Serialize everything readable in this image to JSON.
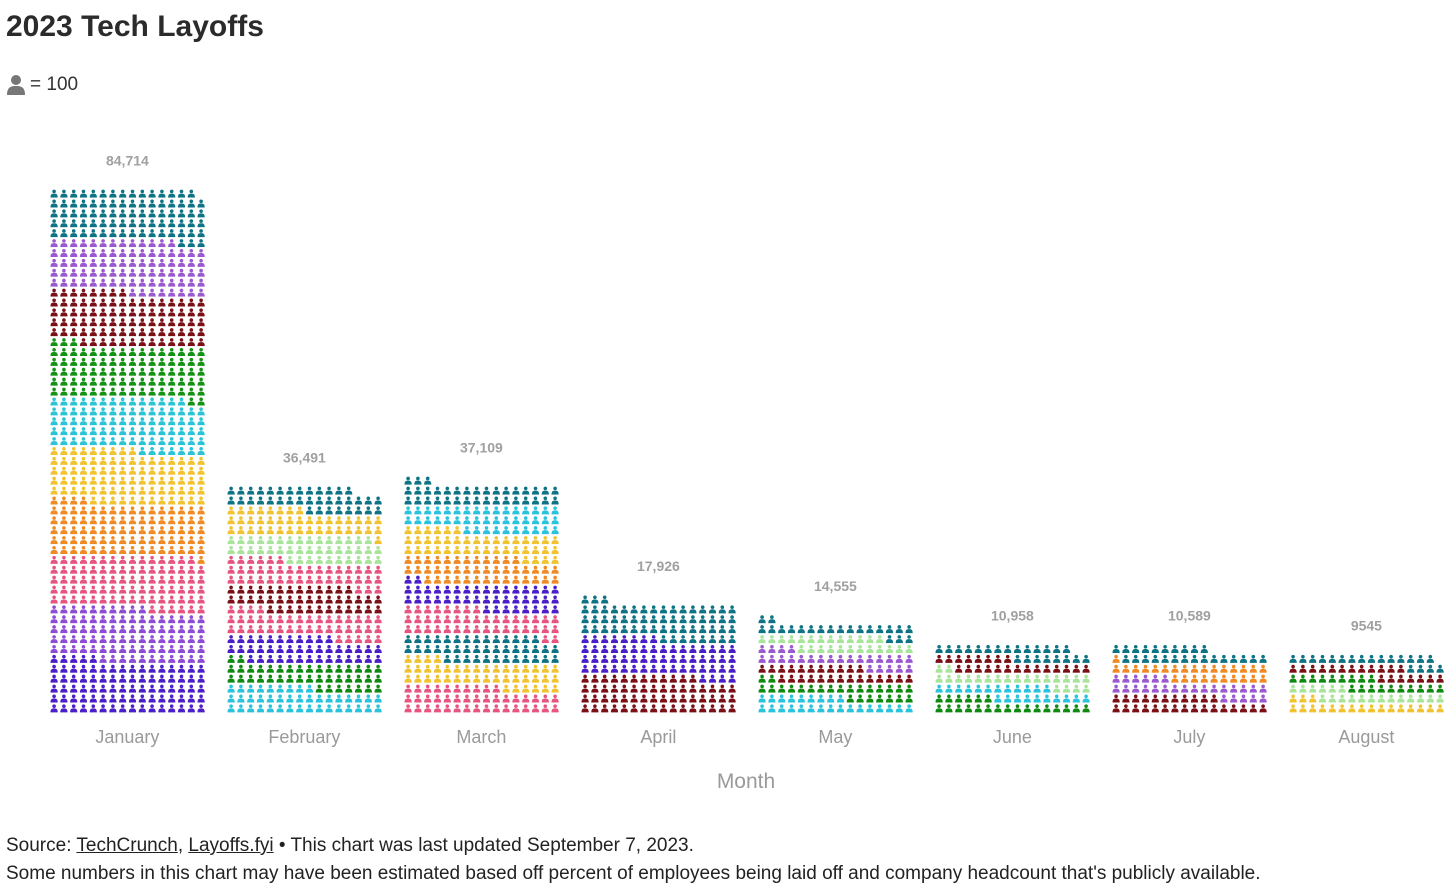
{
  "title": "2023 Tech Layoffs",
  "legend_key": {
    "icon": "person-icon",
    "text": "= 100"
  },
  "chart_data": {
    "type": "bar",
    "style": "pictogram / waffle of person icons, each icon = 100 people, stacked by company color",
    "categories": [
      "January",
      "February",
      "March",
      "April",
      "May",
      "June",
      "July",
      "August"
    ],
    "values": [
      84714,
      36491,
      37109,
      17926,
      14555,
      10958,
      10589,
      9545
    ],
    "value_labels": [
      "84,714",
      "36,491",
      "37,109",
      "17,926",
      "14,555",
      "10,958",
      "10,589",
      "9545"
    ],
    "xlabel": "Month",
    "ylabel": "",
    "ylim": [
      0,
      84714
    ],
    "units_per_icon": 100,
    "grid": false,
    "stack_colors_bottom_to_top": [
      [
        "#4a1fc9",
        "#8e4bd6",
        "#e75480",
        "#f08a24",
        "#f2c330",
        "#2bc4d6",
        "#139214",
        "#7a0f16",
        "#9b59d0",
        "#0e7384"
      ],
      [
        "#2ac3dd",
        "#0f8a10",
        "#4a1fc9",
        "#e75480",
        "#7a0f16",
        "#e75480",
        "#a8e49a",
        "#f2c330",
        "#0e7384"
      ],
      [
        "#e75480",
        "#f2c330",
        "#0e7384",
        "#e75480",
        "#4a1fc9",
        "#f08a24",
        "#f2c330",
        "#2ac3dd",
        "#0e7384"
      ],
      [
        "#7a0f16",
        "#4a1fc9",
        "#0e7384"
      ],
      [
        "#2ac3dd",
        "#0f8a10",
        "#7a0f16",
        "#9b59d0",
        "#a8e49a",
        "#0e7384"
      ],
      [
        "#0f8a10",
        "#2ac3dd",
        "#a8e49a",
        "#7a0f16",
        "#0e7384"
      ],
      [
        "#7a0f16",
        "#9b59d0",
        "#f08a24",
        "#0e7384"
      ],
      [
        "#f2c330",
        "#a8e49a",
        "#0f8a10",
        "#7a0f16",
        "#0e7384"
      ]
    ],
    "colors": {
      "teal": "#0e7384",
      "label_gray": "#9a9a9a",
      "value_label_gray": "#a0a0a0"
    }
  },
  "axis_title": "Month",
  "footer": {
    "source_prefix": "Source: ",
    "source_link_1": "TechCrunch",
    "source_sep": ", ",
    "source_link_2": "Layoffs.fyi",
    "source_suffix": " • This chart was last updated September 7, 2023.",
    "note": "Some numbers in this chart may have been estimated based off percent of employees being laid off and company headcount that's publicly available."
  }
}
